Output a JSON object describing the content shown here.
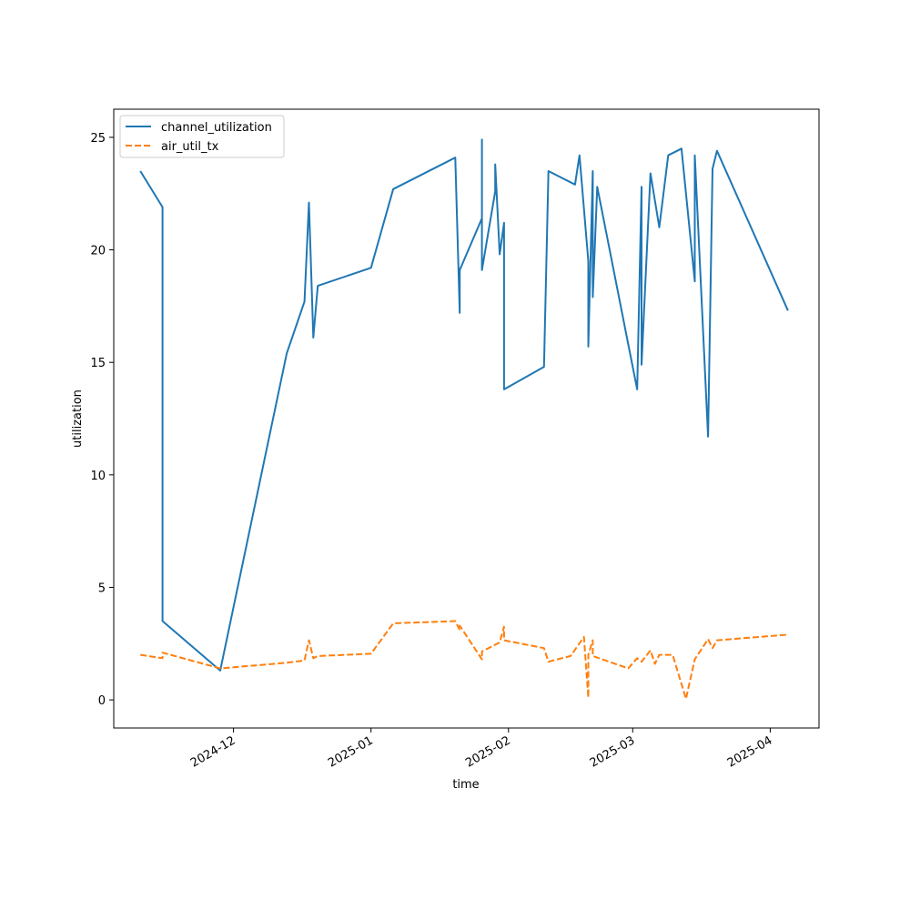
{
  "chart_data": {
    "type": "line",
    "title": "",
    "xlabel": "time",
    "ylabel": "utilization",
    "xlim": [
      "2024-11-04",
      "2025-04-12"
    ],
    "ylim": [
      -1.25,
      26.25
    ],
    "x_ticks": [
      {
        "date": "2024-12-01",
        "label": "2024-12"
      },
      {
        "date": "2025-01-01",
        "label": "2025-01"
      },
      {
        "date": "2025-02-01",
        "label": "2025-02"
      },
      {
        "date": "2025-03-01",
        "label": "2025-03"
      },
      {
        "date": "2025-04-01",
        "label": "2025-04"
      }
    ],
    "y_ticks": [
      0,
      5,
      10,
      15,
      20,
      25
    ],
    "grid": false,
    "legend": "top-left",
    "series": [
      {
        "name": "channel_utilization",
        "color": "#1f77b4",
        "dash": "solid",
        "points": [
          [
            "2024-11-10",
            23.5
          ],
          [
            "2024-11-15",
            21.9
          ],
          [
            "2024-11-15",
            3.5
          ],
          [
            "2024-11-28",
            1.3
          ],
          [
            "2024-12-13",
            15.4
          ],
          [
            "2024-12-17",
            17.7
          ],
          [
            "2024-12-18",
            22.1
          ],
          [
            "2024-12-19",
            16.1
          ],
          [
            "2024-12-20",
            18.4
          ],
          [
            "2025-01-01",
            19.2
          ],
          [
            "2025-01-06",
            22.7
          ],
          [
            "2025-01-20",
            24.1
          ],
          [
            "2025-01-21",
            17.2
          ],
          [
            "2025-01-21",
            19.1
          ],
          [
            "2025-01-26",
            21.4
          ],
          [
            "2025-01-26",
            24.9
          ],
          [
            "2025-01-26",
            19.1
          ],
          [
            "2025-01-29",
            22.6
          ],
          [
            "2025-01-29",
            23.8
          ],
          [
            "2025-01-30",
            19.8
          ],
          [
            "2025-01-31",
            21.2
          ],
          [
            "2025-01-31",
            13.8
          ],
          [
            "2025-02-09",
            14.8
          ],
          [
            "2025-02-10",
            23.5
          ],
          [
            "2025-02-16",
            22.9
          ],
          [
            "2025-02-17",
            24.2
          ],
          [
            "2025-02-19",
            19.5
          ],
          [
            "2025-02-19",
            15.7
          ],
          [
            "2025-02-20",
            23.5
          ],
          [
            "2025-02-20",
            17.9
          ],
          [
            "2025-02-21",
            22.8
          ],
          [
            "2025-02-28",
            15.8
          ],
          [
            "2025-03-02",
            13.8
          ],
          [
            "2025-03-03",
            22.8
          ],
          [
            "2025-03-03",
            14.9
          ],
          [
            "2025-03-05",
            23.4
          ],
          [
            "2025-03-07",
            21.0
          ],
          [
            "2025-03-09",
            24.2
          ],
          [
            "2025-03-12",
            24.5
          ],
          [
            "2025-03-15",
            18.6
          ],
          [
            "2025-03-15",
            24.2
          ],
          [
            "2025-03-18",
            11.7
          ],
          [
            "2025-03-19",
            23.6
          ],
          [
            "2025-03-20",
            24.4
          ],
          [
            "2025-04-05",
            17.3
          ]
        ]
      },
      {
        "name": "air_util_tx",
        "color": "#ff7f0e",
        "dash": "dashed",
        "points": [
          [
            "2024-11-10",
            2.0
          ],
          [
            "2024-11-15",
            1.85
          ],
          [
            "2024-11-15",
            2.1
          ],
          [
            "2024-11-28",
            1.4
          ],
          [
            "2024-12-13",
            1.65
          ],
          [
            "2024-12-17",
            1.75
          ],
          [
            "2024-12-18",
            2.65
          ],
          [
            "2024-12-19",
            1.85
          ],
          [
            "2024-12-20",
            1.95
          ],
          [
            "2025-01-01",
            2.05
          ],
          [
            "2025-01-06",
            3.4
          ],
          [
            "2025-01-20",
            3.5
          ],
          [
            "2025-01-21",
            3.1
          ],
          [
            "2025-01-21",
            3.3
          ],
          [
            "2025-01-26",
            1.8
          ],
          [
            "2025-01-26",
            2.15
          ],
          [
            "2025-01-30",
            2.55
          ],
          [
            "2025-01-31",
            3.25
          ],
          [
            "2025-01-31",
            2.65
          ],
          [
            "2025-02-09",
            2.3
          ],
          [
            "2025-02-10",
            1.7
          ],
          [
            "2025-02-15",
            1.95
          ],
          [
            "2025-02-18",
            2.8
          ],
          [
            "2025-02-19",
            0.1
          ],
          [
            "2025-02-19",
            2.0
          ],
          [
            "2025-02-20",
            2.65
          ],
          [
            "2025-02-20",
            1.95
          ],
          [
            "2025-02-28",
            1.4
          ],
          [
            "2025-03-02",
            1.85
          ],
          [
            "2025-03-03",
            1.7
          ],
          [
            "2025-03-05",
            2.2
          ],
          [
            "2025-03-06",
            1.6
          ],
          [
            "2025-03-07",
            2.0
          ],
          [
            "2025-03-10",
            2.0
          ],
          [
            "2025-03-13",
            0.05
          ],
          [
            "2025-03-15",
            1.8
          ],
          [
            "2025-03-18",
            2.7
          ],
          [
            "2025-03-19",
            2.3
          ],
          [
            "2025-03-20",
            2.65
          ],
          [
            "2025-04-05",
            2.9
          ]
        ]
      }
    ]
  }
}
